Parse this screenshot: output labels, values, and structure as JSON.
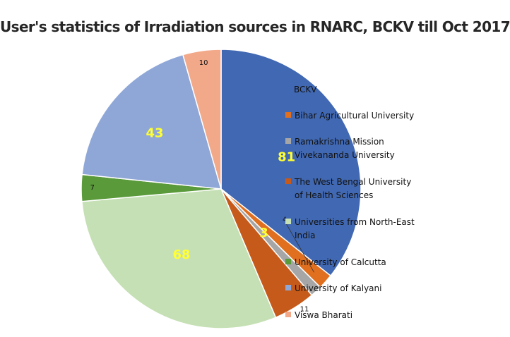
{
  "chart_data": {
    "type": "pie",
    "title": "User's statistics of Irradiation sources in RNARC, BCKV till Oct 2017",
    "slices": [
      {
        "name": "BCKV",
        "value": 81,
        "color": "#4168B2",
        "data_label": "81"
      },
      {
        "name": "Bihar Agricultural University",
        "value": 4,
        "color": "#E07020",
        "data_label": "4"
      },
      {
        "name": "Ramakrishna Mission Vivekananda University",
        "value": 3,
        "color": "#A6A6A6",
        "data_label": "3"
      },
      {
        "name": "The West Bengal University of Health Sciences",
        "value": 11,
        "color": "#C65A1A",
        "data_label": "11"
      },
      {
        "name": "Universities from North-East India",
        "value": 68,
        "color": "#C5E0B4",
        "data_label": "68"
      },
      {
        "name": "University of Calcutta",
        "value": 7,
        "color": "#5A9A3A",
        "data_label": "7"
      },
      {
        "name": "University of Kalyani",
        "value": 43,
        "color": "#8FA7D7",
        "data_label": "43"
      },
      {
        "name": "Viswa Bharati",
        "value": 10,
        "color": "#F2A98A",
        "data_label": "10"
      }
    ],
    "legend_position": "right-inside",
    "start_angle_deg": 0,
    "direction": "clockwise"
  }
}
